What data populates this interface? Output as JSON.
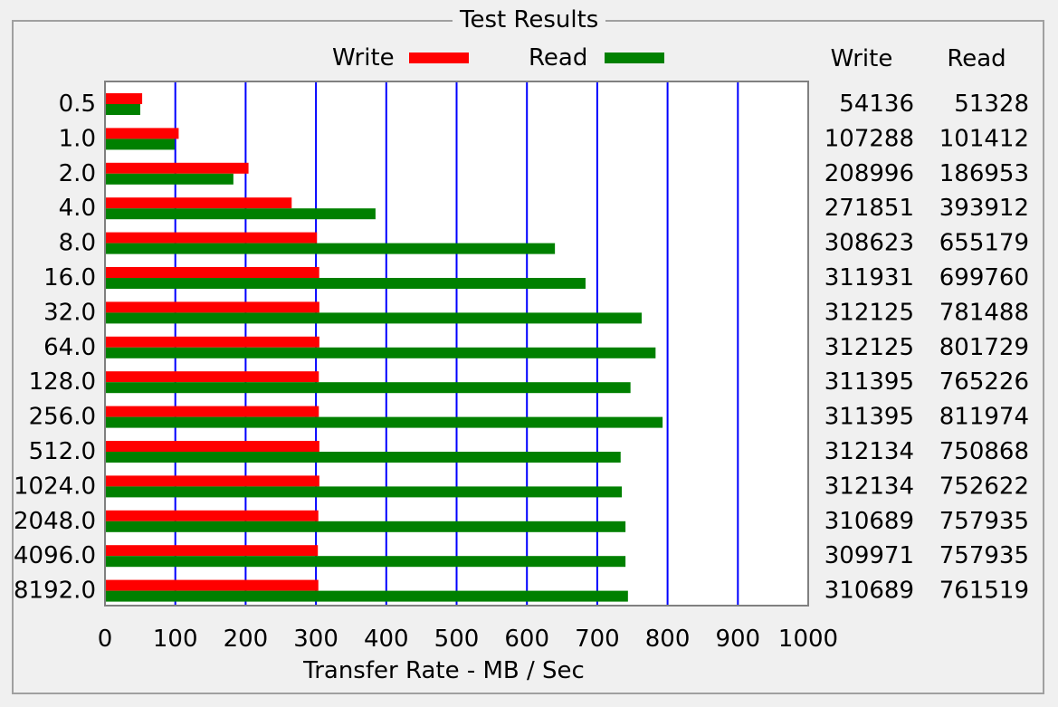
{
  "window": {
    "group_title": "Test Results"
  },
  "colors": {
    "write": "#ff0000",
    "read": "#008000",
    "grid": "#0000ff",
    "plot_bg": "#ffffff",
    "panel_bg": "#f0f0f0"
  },
  "legend": {
    "write_label": "Write",
    "read_label": "Read"
  },
  "table": {
    "headers": [
      "Write",
      "Read"
    ]
  },
  "chart_data": {
    "type": "bar",
    "orientation": "horizontal",
    "title": "Test Results",
    "xlabel": "Transfer Rate - MB / Sec",
    "ylabel": "",
    "xlim": [
      0,
      1000
    ],
    "x_ticks": [
      "0",
      "100",
      "200",
      "300",
      "400",
      "500",
      "600",
      "700",
      "800",
      "900",
      "1000"
    ],
    "grid": true,
    "legend_position": "top",
    "categories": [
      "0.5",
      "1.0",
      "2.0",
      "4.0",
      "8.0",
      "16.0",
      "32.0",
      "64.0",
      "128.0",
      "256.0",
      "512.0",
      "1024.0",
      "2048.0",
      "4096.0",
      "8192.0"
    ],
    "series": [
      {
        "name": "Write",
        "values": [
          54136,
          107288,
          208996,
          271851,
          308623,
          311931,
          312125,
          312125,
          311395,
          311395,
          312134,
          312134,
          310689,
          309971,
          310689
        ],
        "labels": [
          "54136",
          "107288",
          "208996",
          "271851",
          "308623",
          "311931",
          "312125",
          "312125",
          "311395",
          "311395",
          "312134",
          "312134",
          "310689",
          "309971",
          "310689"
        ]
      },
      {
        "name": "Read",
        "values": [
          51328,
          101412,
          186953,
          393912,
          655179,
          699760,
          781488,
          801729,
          765226,
          811974,
          750868,
          752622,
          757935,
          757935,
          761519
        ],
        "labels": [
          "51328",
          "101412",
          "186953",
          "393912",
          "655179",
          "699760",
          "781488",
          "801729",
          "765226",
          "811974",
          "750868",
          "752622",
          "757935",
          "757935",
          "761519"
        ]
      }
    ]
  }
}
